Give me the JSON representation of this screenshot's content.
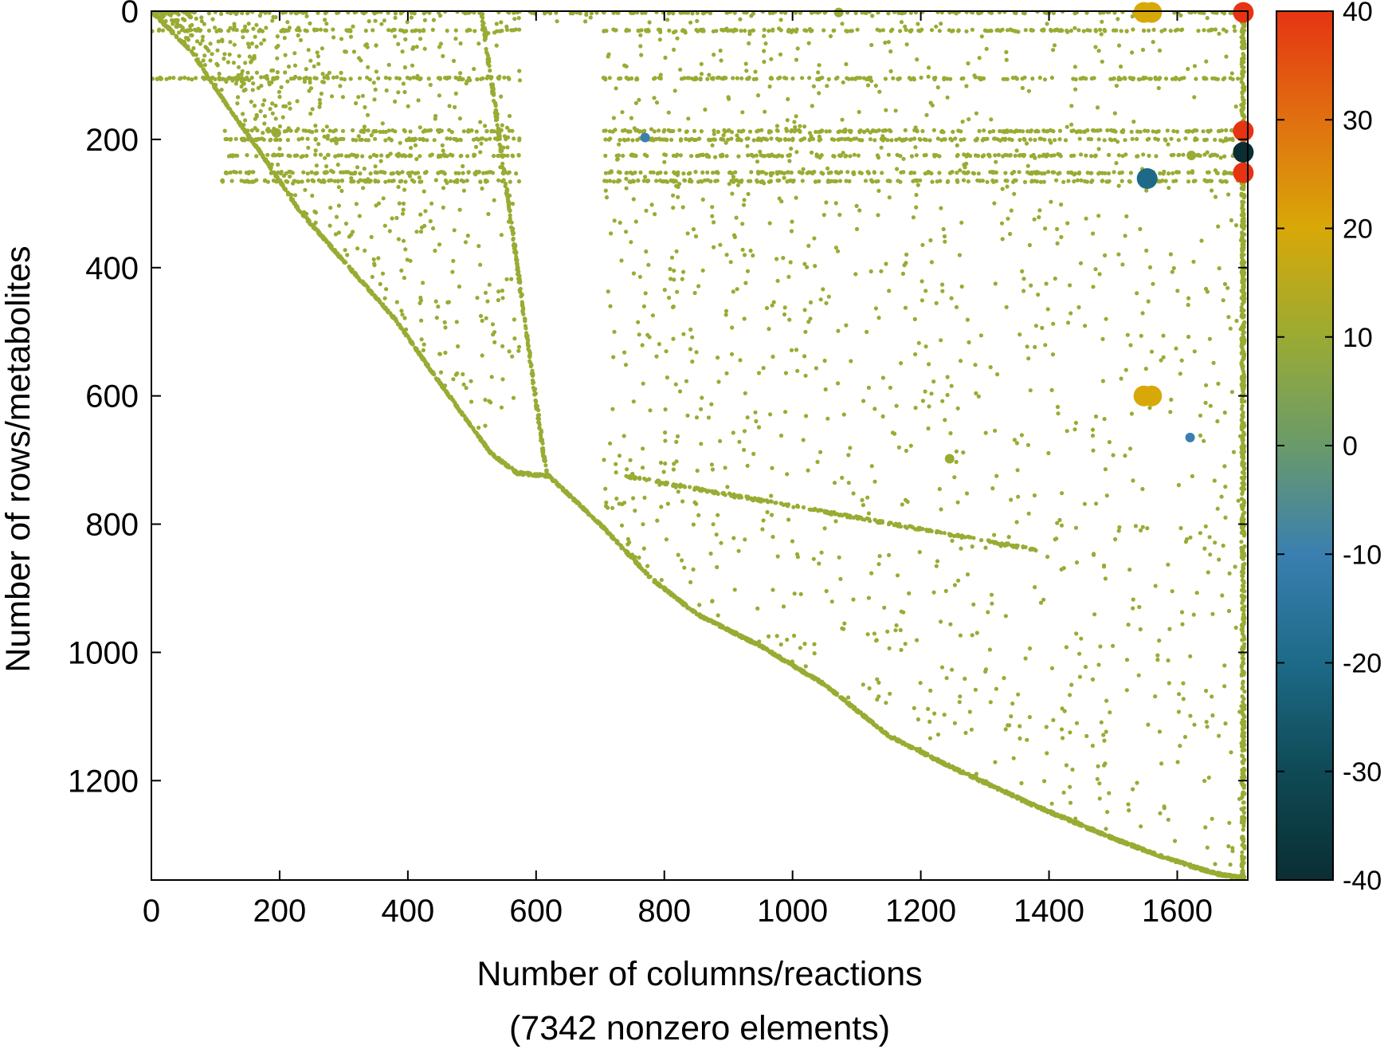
{
  "chart_data": {
    "type": "scatter",
    "subtype": "sparse-matrix-spy",
    "title": "",
    "xlabel": "Number of columns/reactions",
    "xlabel_sub": "(7342 nonzero elements)",
    "ylabel": "Number of rows/metabolites",
    "xlim": [
      0,
      1710
    ],
    "ylim": [
      1355,
      0
    ],
    "y_axis_inverted": true,
    "x_ticks": [
      "0",
      "200",
      "400",
      "600",
      "800",
      "1000",
      "1200",
      "1400",
      "1600"
    ],
    "y_ticks": [
      "0",
      "200",
      "400",
      "600",
      "800",
      "1000",
      "1200"
    ],
    "grid": false,
    "legend": "none",
    "nonzero_count": 7342,
    "point_color": "#9aab33",
    "colorbar": {
      "position": "right",
      "range": [
        -40,
        40
      ],
      "ticks": [
        "40",
        "30",
        "20",
        "10",
        "0",
        "-10",
        "-20",
        "-30",
        "-40"
      ],
      "colors": [
        "#e63412",
        "#e07010",
        "#d8a808",
        "#9aab33",
        "#6a9a6a",
        "#3a7fb0",
        "#1d6a88",
        "#0f4a55",
        "#0a2e33"
      ]
    },
    "diagonal_profile": [
      [
        0,
        0
      ],
      [
        60,
        60
      ],
      [
        120,
        150
      ],
      [
        170,
        220
      ],
      [
        230,
        310
      ],
      [
        300,
        390
      ],
      [
        380,
        480
      ],
      [
        450,
        580
      ],
      [
        530,
        690
      ],
      [
        570,
        720
      ],
      [
        620,
        725
      ],
      [
        700,
        800
      ],
      [
        780,
        885
      ],
      [
        850,
        940
      ],
      [
        950,
        990
      ],
      [
        1050,
        1050
      ],
      [
        1150,
        1130
      ],
      [
        1250,
        1180
      ],
      [
        1380,
        1240
      ],
      [
        1500,
        1290
      ],
      [
        1580,
        1320
      ],
      [
        1660,
        1345
      ],
      [
        1705,
        1352
      ]
    ],
    "highlighted_points": [
      {
        "col": 1548,
        "row": 2,
        "value": 25
      },
      {
        "col": 1560,
        "row": 2,
        "value": 25
      },
      {
        "col": 1703,
        "row": 2,
        "value": 40
      },
      {
        "col": 1703,
        "row": 187,
        "value": 40
      },
      {
        "col": 1703,
        "row": 220,
        "value": -38
      },
      {
        "col": 1703,
        "row": 252,
        "value": 40
      },
      {
        "col": 1553,
        "row": 261,
        "value": -22
      },
      {
        "col": 1548,
        "row": 600,
        "value": 25
      },
      {
        "col": 1560,
        "row": 600,
        "value": 25
      },
      {
        "col": 1620,
        "row": 665,
        "value": -8
      },
      {
        "col": 195,
        "row": 190,
        "value": 12
      },
      {
        "col": 1245,
        "row": 698,
        "value": 12
      },
      {
        "col": 1622,
        "row": 225,
        "value": 13
      },
      {
        "col": 770,
        "row": 197,
        "value": -5
      },
      {
        "col": 1072,
        "row": 2,
        "value": 8
      }
    ]
  }
}
